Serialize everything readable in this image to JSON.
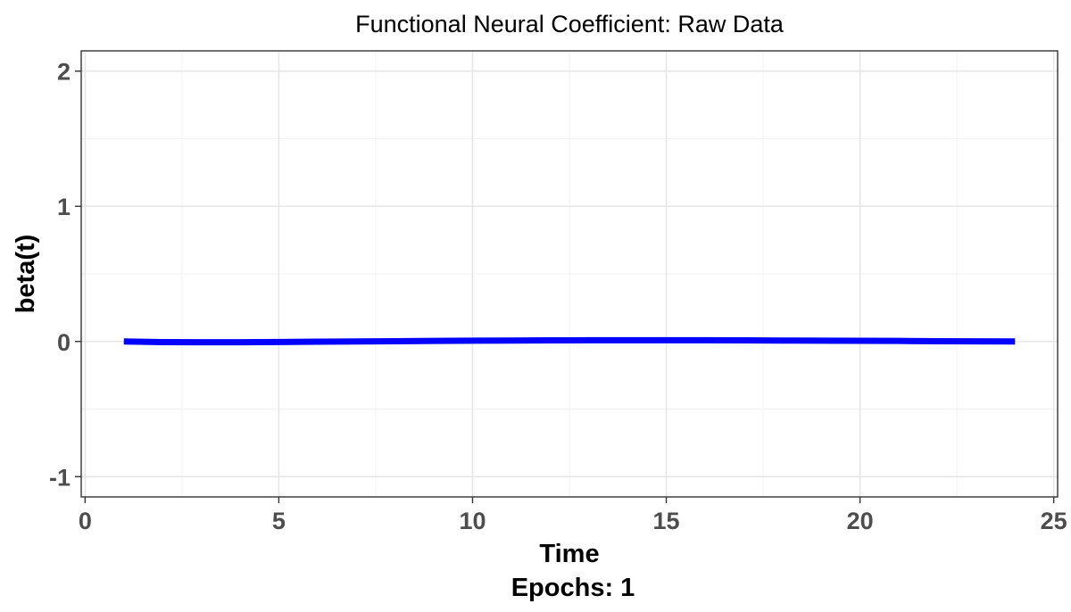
{
  "chart_data": {
    "type": "line",
    "title": "Functional Neural Coefficient: Raw Data",
    "xlabel": "Time",
    "caption": "Epochs: 1",
    "ylabel": "beta(t)",
    "xlim": [
      -0.1,
      25.1
    ],
    "ylim": [
      -1.15,
      2.15
    ],
    "x_ticks": [
      0,
      5,
      10,
      15,
      20,
      25
    ],
    "y_ticks": [
      -1,
      0,
      1,
      2
    ],
    "grid": true,
    "line_color": "#0000ff",
    "series": [
      {
        "x": [
          1,
          2,
          3,
          4,
          5,
          6,
          7,
          8,
          9,
          10,
          11,
          12,
          13,
          14,
          15,
          16,
          17,
          18,
          19,
          20,
          21,
          22,
          23,
          24
        ],
        "values": [
          0.0,
          -0.005,
          -0.006,
          -0.006,
          -0.004,
          -0.002,
          0.0,
          0.002,
          0.004,
          0.006,
          0.007,
          0.008,
          0.009,
          0.009,
          0.009,
          0.009,
          0.008,
          0.007,
          0.006,
          0.005,
          0.004,
          0.002,
          0.001,
          0.0
        ]
      }
    ]
  }
}
